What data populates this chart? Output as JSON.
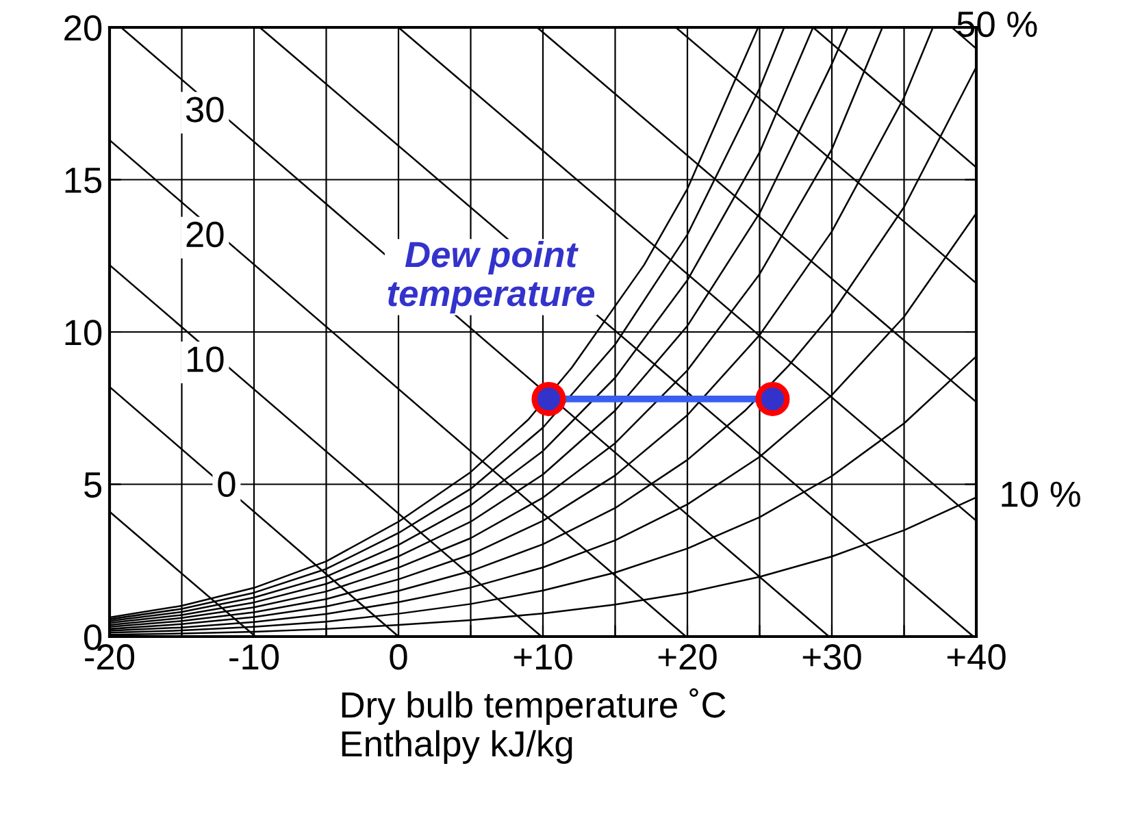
{
  "chart_data": {
    "type": "line",
    "xlabel": "Dry bulb temperature ˚C\nEnthalpy kJ/kg",
    "xlim": [
      -20,
      40
    ],
    "ylim": [
      0,
      20
    ],
    "xticks": [
      -20,
      {
        "value": -15,
        "label": null
      },
      -10,
      {
        "value": -5,
        "label": null
      },
      0,
      {
        "value": 5,
        "label": null
      },
      {
        "value": 10,
        "label": "+10"
      },
      {
        "value": 15,
        "label": null
      },
      {
        "value": 20,
        "label": "+20"
      },
      {
        "value": 25,
        "label": null
      },
      {
        "value": 30,
        "label": "+30"
      },
      {
        "value": 35,
        "label": null
      },
      {
        "value": 40,
        "label": "+40"
      }
    ],
    "yticks": [
      0,
      5,
      10,
      15,
      20
    ],
    "grid": true,
    "legend": "right",
    "series": [
      {
        "color": "#000000",
        "x": [
          -20,
          -15,
          -10,
          -5,
          0,
          5,
          9,
          12,
          17,
          20,
          24.9
        ],
        "values": [
          0.63,
          1.01,
          1.6,
          2.47,
          3.77,
          5.4,
          7.13,
          8.83,
          12.2,
          14.7,
          20
        ]
      },
      {
        "color": "#000000",
        "x": [
          -20,
          -15,
          -10,
          -5,
          0,
          5,
          10,
          15,
          20,
          25,
          26.7
        ],
        "values": [
          0.57,
          0.91,
          1.44,
          2.22,
          3.4,
          4.85,
          6.86,
          9.59,
          13.2,
          18.0,
          20
        ]
      },
      {
        "color": "#000000",
        "x": [
          -20,
          -15,
          -10,
          -5,
          0,
          5,
          10,
          15,
          20,
          25,
          28.7
        ],
        "values": [
          0.51,
          0.81,
          1.28,
          1.97,
          3.01,
          4.31,
          6.09,
          8.5,
          11.7,
          15.9,
          20
        ]
      },
      {
        "color": "#000000",
        "x": [
          -20,
          -15,
          -10,
          -5,
          0,
          5,
          10,
          15,
          20,
          25,
          30,
          31.1
        ],
        "values": [
          0.45,
          0.71,
          1.12,
          1.73,
          2.63,
          3.77,
          5.32,
          7.42,
          10.2,
          13.9,
          18.8,
          20
        ]
      },
      {
        "color": "#000000",
        "x": [
          -20,
          -15,
          -10,
          -5,
          0,
          5,
          10,
          15,
          20,
          25,
          30,
          33.5
        ],
        "values": [
          0.38,
          0.61,
          0.96,
          1.48,
          2.26,
          3.23,
          4.56,
          6.35,
          8.74,
          11.9,
          16.0,
          20
        ]
      },
      {
        "name": "50 %",
        "color": "#000000",
        "x": [
          -20,
          -15,
          -10,
          -5,
          0,
          5,
          10,
          15,
          20,
          25,
          30,
          35,
          37
        ],
        "values": [
          0.32,
          0.51,
          0.8,
          1.23,
          1.88,
          2.69,
          3.8,
          5.29,
          7.27,
          9.9,
          13.3,
          17.7,
          20
        ]
      },
      {
        "color": "#000000",
        "x": [
          -20,
          -15,
          -10,
          -5,
          0,
          5,
          10,
          15,
          20,
          24,
          27,
          30,
          35,
          40
        ],
        "values": [
          0.25,
          0.41,
          0.64,
          0.99,
          1.5,
          2.15,
          3.03,
          4.22,
          5.8,
          7.42,
          8.89,
          10.6,
          14.1,
          18.7
        ]
      },
      {
        "color": "#000000",
        "x": [
          -20,
          -15,
          -10,
          -5,
          0,
          5,
          10,
          15,
          20,
          25,
          30,
          35,
          40
        ],
        "values": [
          0.19,
          0.3,
          0.48,
          0.74,
          1.13,
          1.61,
          2.27,
          3.16,
          4.34,
          5.9,
          7.93,
          10.5,
          13.9
        ]
      },
      {
        "color": "#000000",
        "x": [
          -20,
          -15,
          -10,
          -5,
          0,
          5,
          10,
          15,
          20,
          25,
          30,
          35,
          40
        ],
        "values": [
          0.13,
          0.2,
          0.32,
          0.49,
          0.75,
          1.07,
          1.51,
          2.1,
          2.89,
          3.92,
          5.27,
          7.0,
          9.2
        ]
      },
      {
        "name": "10 %",
        "color": "#000000",
        "x": [
          -20,
          -15,
          -10,
          -5,
          0,
          5,
          10,
          15,
          20,
          25,
          30,
          35,
          40
        ],
        "values": [
          0.06,
          0.1,
          0.16,
          0.25,
          0.38,
          0.54,
          0.76,
          1.05,
          1.44,
          1.96,
          2.63,
          3.49,
          4.57
        ]
      },
      {
        "color": "#000000",
        "x": [
          -20,
          -9.9
        ],
        "values": [
          4.1,
          0
        ]
      },
      {
        "color": "#000000",
        "x": [
          -20,
          0
        ],
        "values": [
          8.2,
          0
        ]
      },
      {
        "color": "#000000",
        "x": [
          -20,
          9.9
        ],
        "values": [
          12.2,
          0
        ]
      },
      {
        "color": "#000000",
        "x": [
          -20,
          19.9
        ],
        "values": [
          16.3,
          0
        ]
      },
      {
        "color": "#000000",
        "x": [
          -19.2,
          29.8
        ],
        "values": [
          20,
          0
        ]
      },
      {
        "color": "#000000",
        "x": [
          -9.6,
          39.8
        ],
        "values": [
          20,
          0
        ]
      },
      {
        "color": "#000000",
        "x": [
          0,
          40
        ],
        "values": [
          20,
          3.8
        ]
      },
      {
        "color": "#000000",
        "x": [
          9.6,
          40
        ],
        "values": [
          20,
          7.7
        ]
      },
      {
        "color": "#000000",
        "x": [
          19.2,
          40
        ],
        "values": [
          20,
          11.6
        ]
      },
      {
        "color": "#000000",
        "x": [
          28.7,
          40
        ],
        "values": [
          20,
          15.4
        ]
      },
      {
        "color": "#000000",
        "x": [
          38.3,
          40
        ],
        "values": [
          20,
          19.3
        ]
      },
      {
        "color": "#3a5ef0",
        "x": [
          10.4,
          25.9
        ],
        "values": [
          7.8,
          7.8
        ],
        "marker": "circle"
      }
    ],
    "annotations": [
      "30",
      "20",
      "10",
      "0",
      "Dew point\ntemperature"
    ]
  }
}
